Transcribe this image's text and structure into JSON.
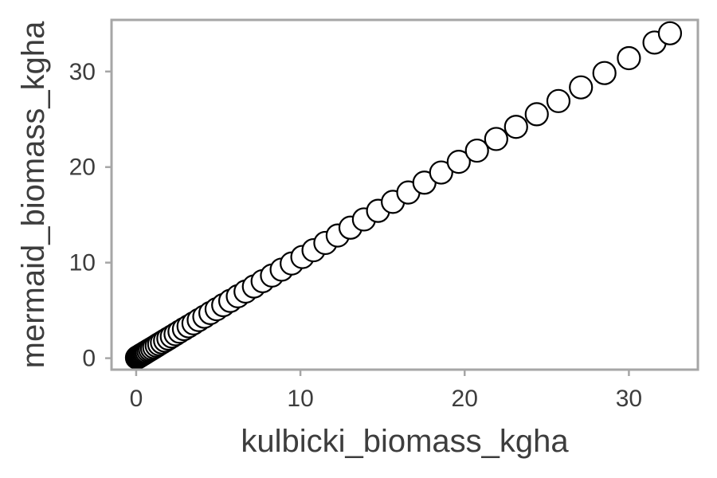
{
  "chart_data": {
    "type": "scatter",
    "title": "",
    "xlabel": "kulbicki_biomass_kgha",
    "ylabel": "mermaid_biomass_kgha",
    "xlim": [
      -1.5,
      34.2
    ],
    "ylim": [
      -1.2,
      35.4
    ],
    "xticks": [
      0,
      10,
      20,
      30
    ],
    "yticks": [
      0,
      10,
      20,
      30
    ],
    "xtick_labels": [
      "0",
      "10",
      "20",
      "30"
    ],
    "ytick_labels": [
      "0",
      "10",
      "20",
      "30"
    ],
    "grid": false,
    "legend": "none",
    "colors": {
      "marker_edge": "#000000",
      "marker_fill": "#ffffff",
      "frame": "#a6a6a6",
      "text": "#3d3d3d"
    },
    "series": [
      {
        "x": [
          0.05,
          0.1,
          0.15,
          0.2,
          0.26,
          0.32,
          0.39,
          0.47,
          0.55,
          0.64,
          0.74,
          0.85,
          0.97,
          1.1,
          1.25,
          1.4,
          1.57,
          1.76,
          1.96,
          2.17,
          2.4,
          2.64,
          2.91,
          3.19,
          3.49,
          3.81,
          4.15,
          4.52,
          4.9,
          5.3,
          5.73,
          6.19,
          6.66,
          7.17,
          7.7,
          8.27,
          8.86,
          9.47,
          10.12,
          10.8,
          11.52,
          12.27,
          13.05,
          13.87,
          14.73,
          15.63,
          16.57,
          17.55,
          18.57,
          19.64,
          20.75,
          21.92,
          23.13,
          24.39,
          25.71,
          27.08,
          28.51,
          30.0,
          31.56,
          32.5
        ],
        "y": [
          0.05,
          0.11,
          0.16,
          0.21,
          0.27,
          0.34,
          0.41,
          0.49,
          0.58,
          0.67,
          0.78,
          0.89,
          1.01,
          1.15,
          1.31,
          1.47,
          1.65,
          1.84,
          2.05,
          2.27,
          2.51,
          2.77,
          3.05,
          3.34,
          3.65,
          3.99,
          4.34,
          4.73,
          5.13,
          5.55,
          6.0,
          6.48,
          6.97,
          7.5,
          8.06,
          8.65,
          9.27,
          9.91,
          10.59,
          11.3,
          12.06,
          12.84,
          13.66,
          14.52,
          15.42,
          16.36,
          17.34,
          18.37,
          19.43,
          20.55,
          21.72,
          22.94,
          24.21,
          25.53,
          26.91,
          28.34,
          29.84,
          31.4,
          33.03,
          34.0
        ]
      }
    ]
  }
}
